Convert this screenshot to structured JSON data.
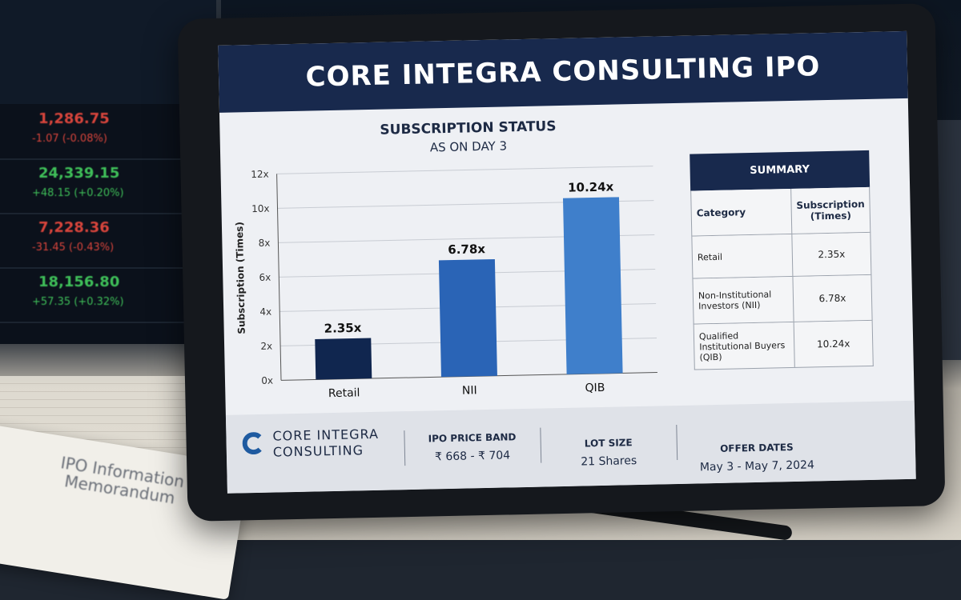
{
  "presentation": {
    "title": "CORE INTEGRA CONSULTING IPO"
  },
  "chart_data": {
    "type": "bar",
    "title": "SUBSCRIPTION STATUS",
    "subtitle": "AS ON DAY 3",
    "ylabel": "Subscription (Times)",
    "xlabel": "",
    "categories": [
      "Retail",
      "NII",
      "QIB"
    ],
    "values": [
      2.35,
      6.78,
      10.24
    ],
    "data_labels": [
      "2.35x",
      "6.78x",
      "10.24x"
    ],
    "bar_colors": [
      "#10264f",
      "#2a64b6",
      "#3f7fcb"
    ],
    "ylim": [
      0,
      12
    ],
    "yticks": [
      "0x",
      "2x",
      "4x",
      "6x",
      "8x",
      "10x",
      "12x"
    ],
    "grid": true
  },
  "summary": {
    "title": "SUMMARY",
    "header": {
      "category": "Category",
      "subscription": "Subscription (Times)"
    },
    "rows": [
      {
        "category": "Retail",
        "value": "2.35x"
      },
      {
        "category": "Non-Institutional Investors (NII)",
        "value": "6.78x"
      },
      {
        "category": "Qualified Institutional Buyers (QIB)",
        "value": "10.24x"
      }
    ]
  },
  "footer": {
    "logo_line1": "CORE INTEGRA",
    "logo_line2": "CONSULTING",
    "price_band_label": "IPO PRICE BAND",
    "price_band_value": "₹ 668 - ₹ 704",
    "lot_size_label": "LOT SIZE",
    "lot_size_value": "21 Shares",
    "offer_dates_label": "OFFER DATES",
    "offer_dates_value": "May 3 - May 7, 2024"
  },
  "background": {
    "ticker": [
      {
        "price": "1,286.75",
        "change": "-1.07 (-0.08%)",
        "color": "#d8453c"
      },
      {
        "price": "24,339.15",
        "change": "+48.15 (+0.20%)",
        "color": "#3fbf59"
      },
      {
        "price": "7,228.36",
        "change": "-31.45 (-0.43%)",
        "color": "#d8453c"
      },
      {
        "price": "18,156.80",
        "change": "+57.35 (+0.32%)",
        "color": "#3fbf59"
      }
    ],
    "memo_title": "IPO Information Memorandum"
  }
}
